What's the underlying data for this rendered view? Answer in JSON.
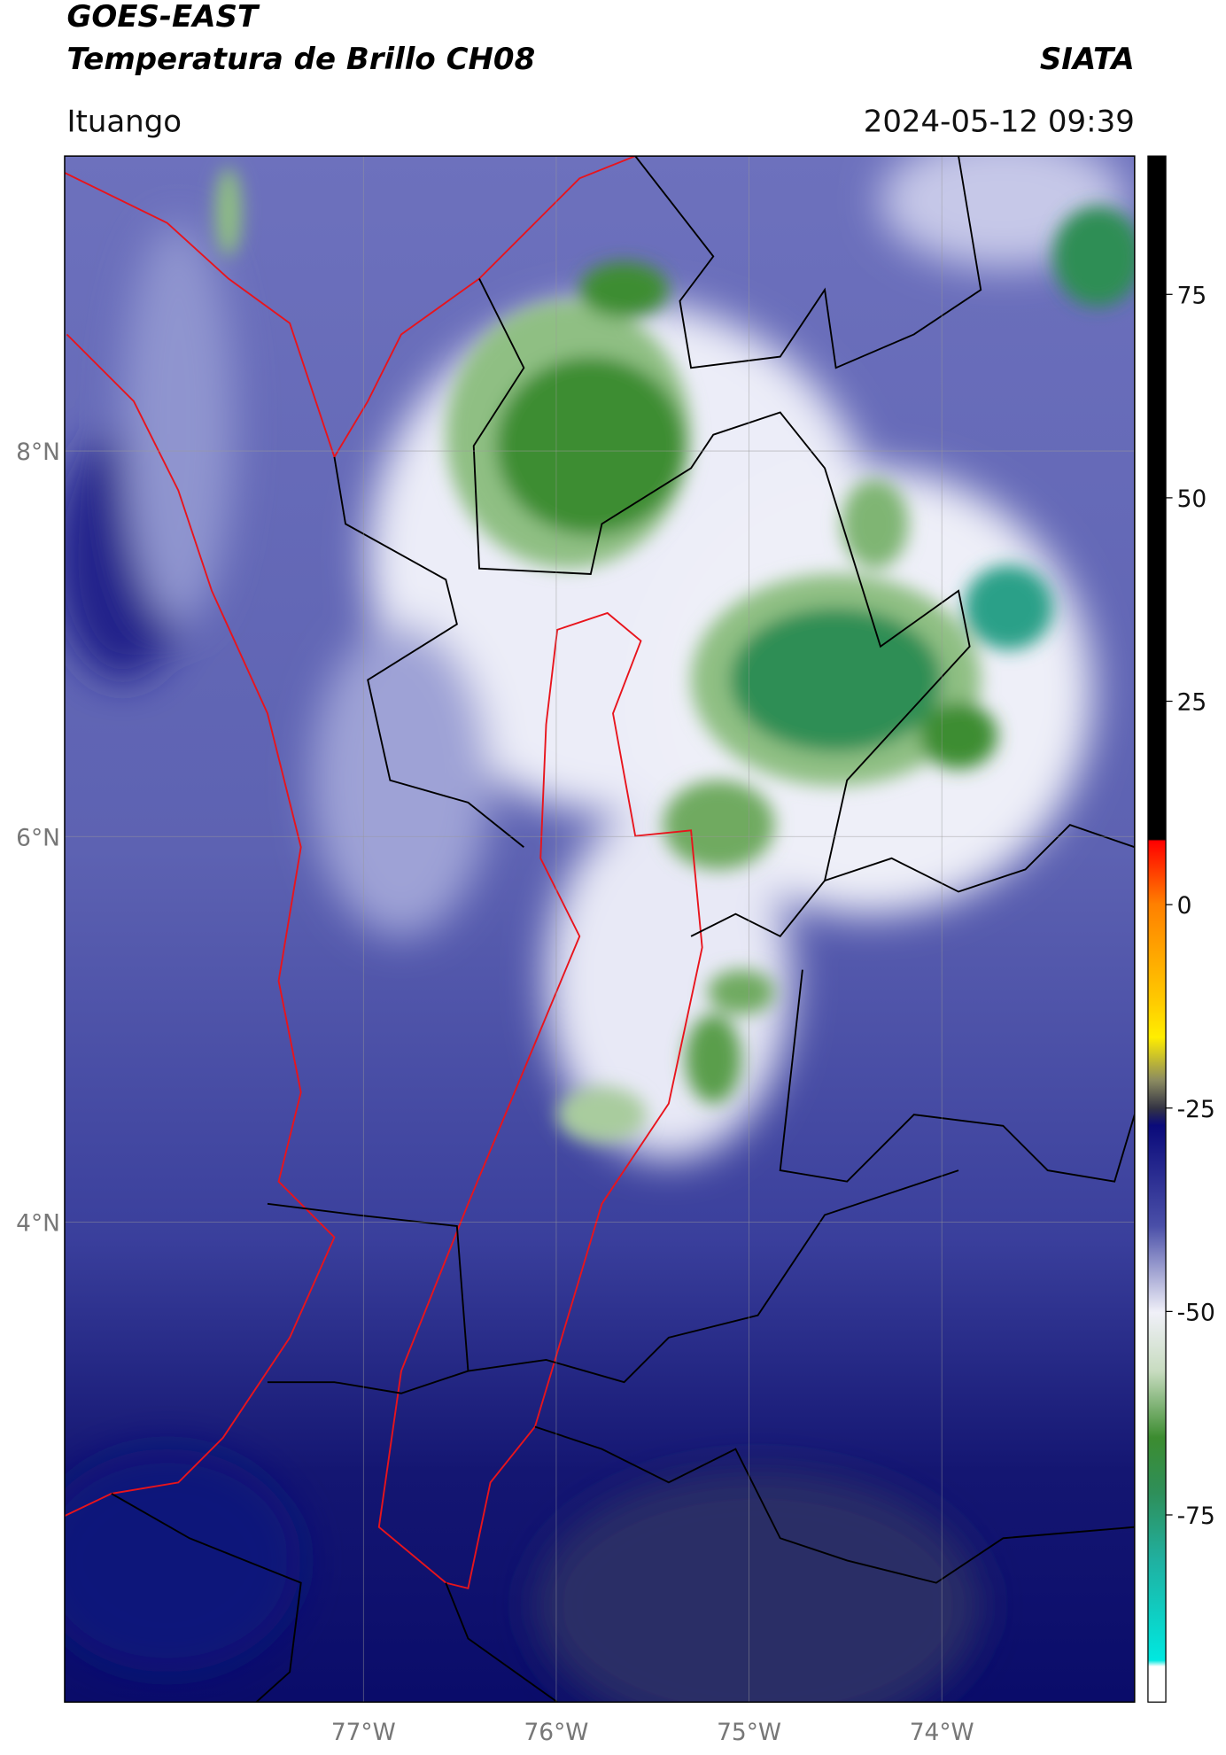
{
  "header": {
    "title": "GOES-EAST",
    "subtitle": "Temperatura de Brillo CH08",
    "source": "SIATA",
    "location": "Ituango",
    "timestamp": "2024-05-12 09:39"
  },
  "map": {
    "xlim": [
      -78.55,
      -73.0
    ],
    "ylim": [
      1.51,
      9.53
    ],
    "xticks": [
      {
        "value": -77,
        "label": "77°W"
      },
      {
        "value": -76,
        "label": "76°W"
      },
      {
        "value": -75,
        "label": "75°W"
      },
      {
        "value": -74,
        "label": "74°W"
      }
    ],
    "yticks": [
      {
        "value": 8,
        "label": "8°N"
      },
      {
        "value": 6,
        "label": "6°N"
      },
      {
        "value": 4,
        "label": "4°N"
      }
    ],
    "grid": true
  },
  "colorbar": {
    "lim": [
      -98,
      92
    ],
    "ticks": [
      75,
      50,
      25,
      0,
      -25,
      -50,
      -75
    ]
  }
}
